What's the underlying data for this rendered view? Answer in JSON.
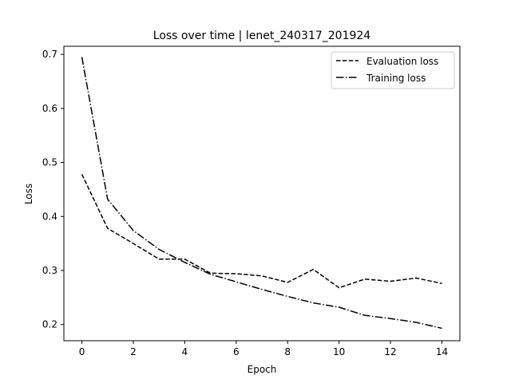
{
  "chart_data": {
    "type": "line",
    "title": "Loss over time | lenet_240317_201924",
    "xlabel": "Epoch",
    "ylabel": "Loss",
    "xlim": [
      -0.7,
      14.7
    ],
    "ylim": [
      0.17,
      0.715
    ],
    "xticks": [
      0,
      2,
      4,
      6,
      8,
      10,
      12,
      14
    ],
    "yticks": [
      0.2,
      0.3,
      0.4,
      0.5,
      0.6,
      0.7
    ],
    "xtick_labels": [
      "0",
      "2",
      "4",
      "6",
      "8",
      "10",
      "12",
      "14"
    ],
    "ytick_labels": [
      "0.2",
      "0.3",
      "0.4",
      "0.5",
      "0.6",
      "0.7"
    ],
    "grid": false,
    "legend_position": "top-right",
    "x": [
      0,
      1,
      2,
      3,
      4,
      5,
      6,
      7,
      8,
      9,
      10,
      11,
      12,
      13,
      14
    ],
    "series": [
      {
        "name": "Evaluation loss",
        "style": "dashed",
        "color": "#000000",
        "values": [
          0.478,
          0.378,
          0.35,
          0.321,
          0.321,
          0.295,
          0.294,
          0.29,
          0.278,
          0.302,
          0.268,
          0.284,
          0.28,
          0.286,
          0.276
        ]
      },
      {
        "name": "Training loss",
        "style": "dashdot",
        "color": "#000000",
        "values": [
          0.695,
          0.432,
          0.374,
          0.339,
          0.315,
          0.293,
          0.279,
          0.265,
          0.252,
          0.24,
          0.232,
          0.217,
          0.211,
          0.204,
          0.193
        ]
      }
    ]
  }
}
